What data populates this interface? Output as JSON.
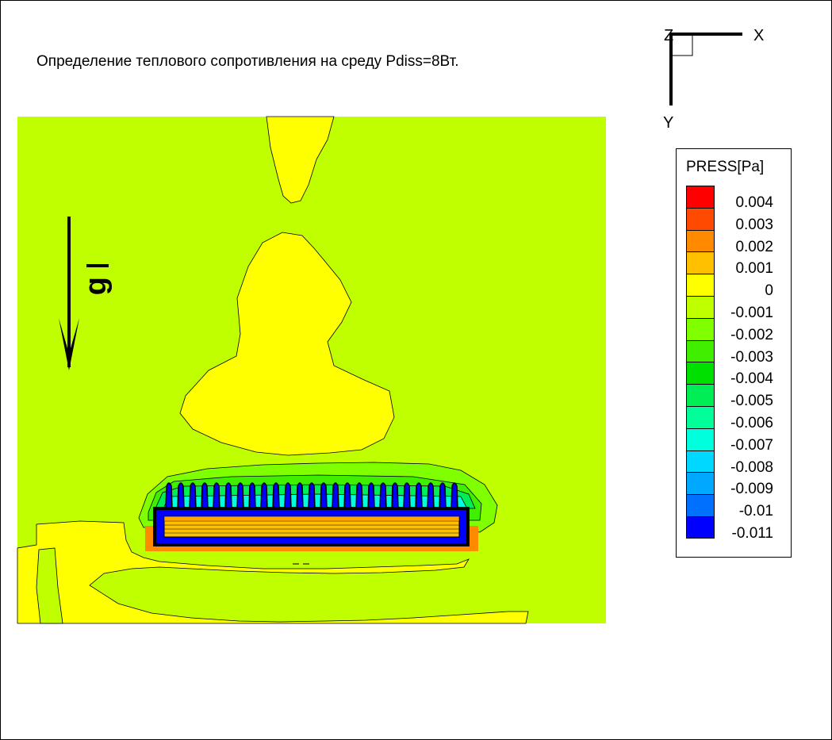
{
  "title": "Определение теплового сопротивления на среду Pdiss=8Вт.",
  "gravity_label": "g",
  "axis_triad": {
    "x_label": "X",
    "y_label": "Y",
    "z_label": "Z"
  },
  "chart_data": {
    "type": "heatmap",
    "title": "Определение теплового сопротивления на среду Pdiss=8Вт.",
    "variable": "PRESS[Pa]",
    "levels": [
      0.004,
      0.003,
      0.002,
      0.001,
      0,
      -0.001,
      -0.002,
      -0.003,
      -0.004,
      -0.005,
      -0.006,
      -0.007,
      -0.008,
      -0.009,
      -0.01,
      -0.011
    ],
    "level_labels": [
      "0.004",
      "0.003",
      "0.002",
      "0.001",
      "0",
      "-0.001",
      "-0.002",
      "-0.003",
      "-0.004",
      "-0.005",
      "-0.006",
      "-0.007",
      "-0.008",
      "-0.009",
      "-0.01",
      "-0.011"
    ],
    "colors": [
      "#ff0000",
      "#ff4a00",
      "#ff8a00",
      "#ffc000",
      "#ffff00",
      "#bfff00",
      "#80ff00",
      "#40ee00",
      "#00e000",
      "#00ee55",
      "#00ff99",
      "#00ffdd",
      "#00d8ff",
      "#00a8ff",
      "#0070ff",
      "#0000ff"
    ],
    "background_value": -0.0005,
    "legend_position": "right"
  }
}
